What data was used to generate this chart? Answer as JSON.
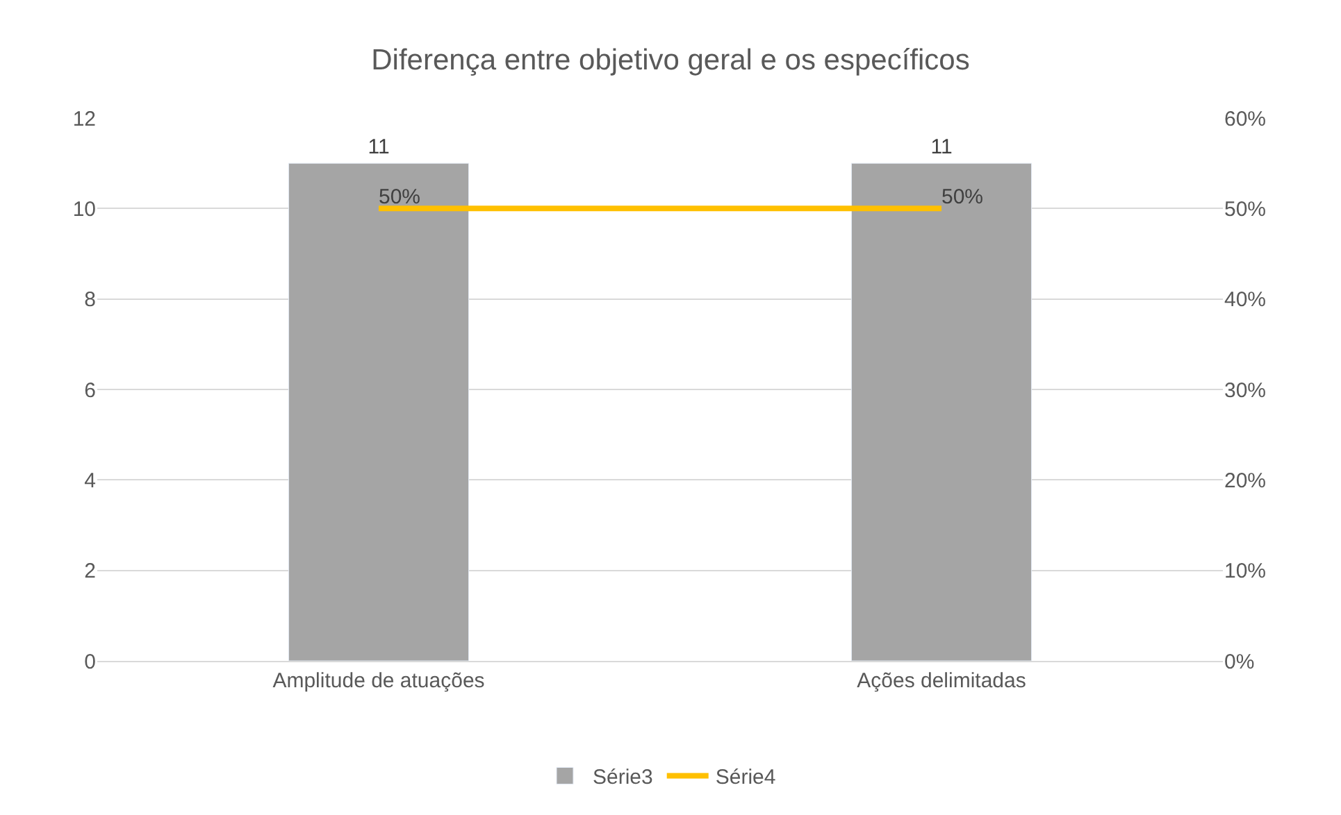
{
  "chart_data": {
    "type": "bar",
    "title": "Diferença entre objetivo geral e os específicos",
    "categories": [
      "Amplitude de atuações",
      "Ações delimitadas"
    ],
    "series": [
      {
        "name": "Série3",
        "color": "#a5a5a5",
        "values": [
          11,
          11
        ],
        "value_labels": [
          "11",
          "11"
        ]
      },
      {
        "name": "Série4",
        "type": "line",
        "axis": "y2",
        "color": "#ffc000",
        "values": [
          50,
          50
        ],
        "value_labels": [
          "50%",
          "50%"
        ],
        "marker": "none",
        "line_style": "solid"
      }
    ],
    "ylim": [
      0,
      12
    ],
    "yticks": [
      0,
      2,
      4,
      6,
      8,
      10,
      12
    ],
    "y2lim": [
      0,
      60
    ],
    "y2ticks": [
      {
        "value": 0,
        "label": "0%"
      },
      {
        "value": 10,
        "label": "10%"
      },
      {
        "value": 20,
        "label": "20%"
      },
      {
        "value": 30,
        "label": "30%"
      },
      {
        "value": 40,
        "label": "40%"
      },
      {
        "value": 50,
        "label": "50%"
      },
      {
        "value": 60,
        "label": "60%"
      }
    ],
    "grid": "y",
    "legend": "bottom"
  }
}
